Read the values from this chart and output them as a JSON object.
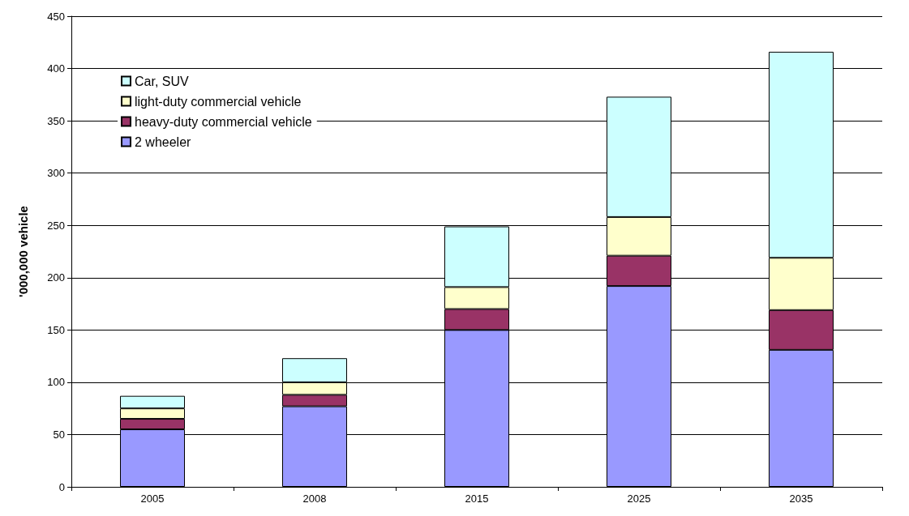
{
  "chart_data": {
    "type": "bar",
    "ylabel": "'000,000 vehicle",
    "categories": [
      "2005",
      "2008",
      "2015",
      "2025",
      "2035"
    ],
    "stacked": true,
    "series": [
      {
        "name": "2 wheeler",
        "color": "#9999ff",
        "values": [
          55,
          77,
          150,
          192,
          131
        ]
      },
      {
        "name": "heavy-duty commercial vehicle",
        "color": "#993366",
        "values": [
          10,
          11,
          20,
          29,
          38
        ]
      },
      {
        "name": "light-duty commercial vehicle",
        "color": "#ffffcc",
        "values": [
          10,
          12,
          21,
          37,
          50
        ]
      },
      {
        "name": "Car, SUV",
        "color": "#ccffff",
        "values": [
          12,
          23,
          58,
          115,
          197
        ]
      }
    ],
    "ylim": [
      0,
      450
    ],
    "yticks": [
      0,
      50,
      100,
      150,
      200,
      250,
      300,
      350,
      400,
      450
    ],
    "grid": "y",
    "legend": "top left"
  }
}
